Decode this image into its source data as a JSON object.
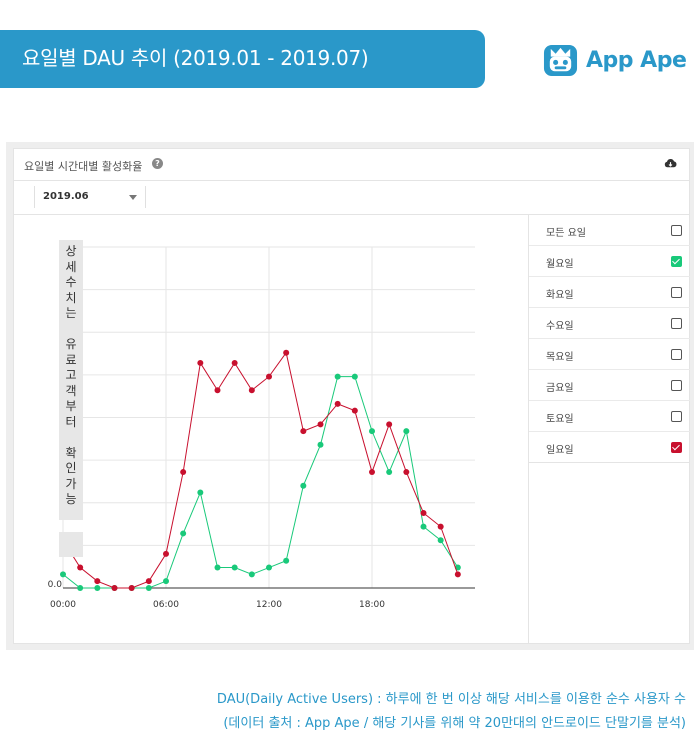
{
  "header": {
    "title": "요일별 DAU 추이 (2019.01 - 2019.07)"
  },
  "brand": {
    "name": "App Ape",
    "accent": "#2a98c9"
  },
  "card": {
    "title": "요일별 시간대별 활성화율",
    "help_icon": "help-icon",
    "download_icon": "download-icon",
    "month_select": "2019.06"
  },
  "legend": {
    "items": [
      {
        "label": "모든 요일",
        "checked": false,
        "color": ""
      },
      {
        "label": "월요일",
        "checked": true,
        "color": "#19c97a"
      },
      {
        "label": "화요일",
        "checked": false,
        "color": ""
      },
      {
        "label": "수요일",
        "checked": false,
        "color": ""
      },
      {
        "label": "목요일",
        "checked": false,
        "color": ""
      },
      {
        "label": "금요일",
        "checked": false,
        "color": ""
      },
      {
        "label": "토요일",
        "checked": false,
        "color": ""
      },
      {
        "label": "일요일",
        "checked": true,
        "color": "#c8102e"
      }
    ]
  },
  "overlay_text": "상세수치는 유료고객부터 확인가능",
  "chart_data": {
    "type": "line",
    "title": "요일별 시간대별 활성화율",
    "x": [
      0,
      1,
      2,
      3,
      4,
      5,
      6,
      7,
      8,
      9,
      10,
      11,
      12,
      13,
      14,
      15,
      16,
      17,
      18,
      19,
      20,
      21,
      22,
      23
    ],
    "x_ticks": [
      {
        "value": 0,
        "label": "00:00"
      },
      {
        "value": 6,
        "label": "06:00"
      },
      {
        "value": 12,
        "label": "12:00"
      },
      {
        "value": 18,
        "label": "18:00"
      }
    ],
    "xlim": [
      0,
      24
    ],
    "y_tick_label_visible": "0.0",
    "ylim": [
      0,
      100
    ],
    "y_gridlines": 8,
    "grid": true,
    "series": [
      {
        "name": "월요일",
        "color": "#19c97a",
        "values": [
          4,
          0,
          0,
          0,
          0,
          0,
          2,
          16,
          28,
          6,
          6,
          4,
          6,
          8,
          30,
          42,
          62,
          62,
          46,
          34,
          46,
          18,
          14,
          6
        ]
      },
      {
        "name": "일요일",
        "color": "#c8102e",
        "values": [
          14,
          6,
          2,
          0,
          0,
          2,
          10,
          34,
          66,
          58,
          66,
          58,
          62,
          69,
          46,
          48,
          54,
          52,
          34,
          48,
          34,
          22,
          18,
          4
        ]
      }
    ]
  },
  "caption": {
    "line1": "DAU(Daily Active Users) : 하루에 한 번 이상 해당 서비스를 이용한 순수 사용자 수",
    "line2": "(데이터 출처 : App Ape / 해당 기사를 위해 약 20만대의 안드로이드 단말기를 분석)"
  }
}
